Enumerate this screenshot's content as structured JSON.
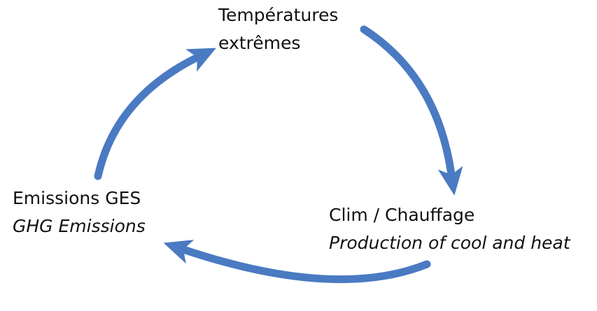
{
  "nodes": [
    {
      "label": "Températures",
      "sublabel": "extrêmes"
    },
    {
      "label": "Clim / Chauffage",
      "sublabel": "Production of cool and heat"
    },
    {
      "label": "Emissions GES",
      "sublabel": "GHG Emissions"
    }
  ]
}
